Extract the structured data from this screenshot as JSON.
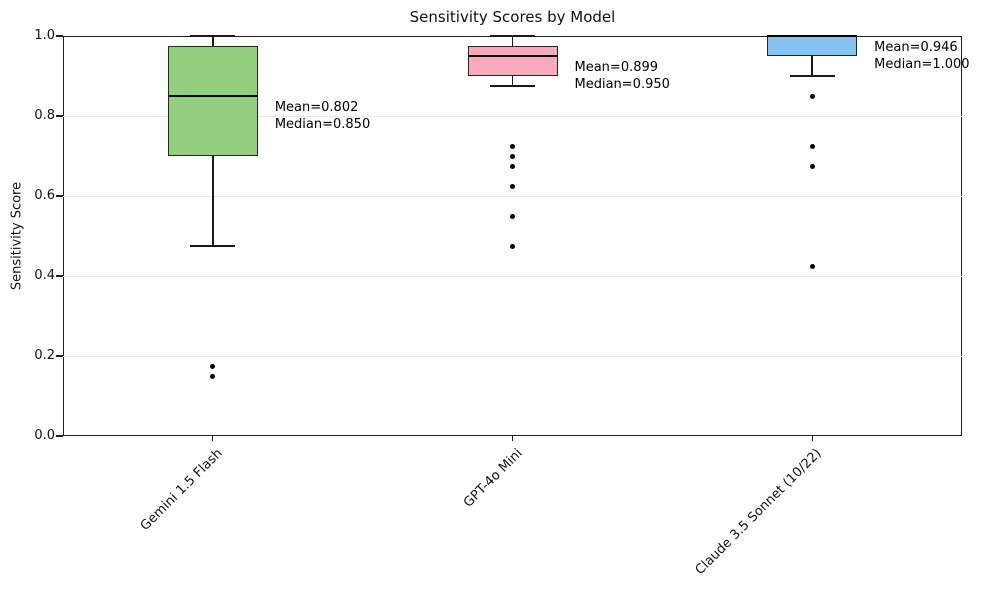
{
  "chart_data": {
    "type": "box",
    "title": "Sensitivity Scores by Model",
    "xlabel": "",
    "ylabel": "Sensitivity Score",
    "ylim": [
      0.0,
      1.0
    ],
    "yticks": [
      0.0,
      0.2,
      0.4,
      0.6,
      0.8,
      1.0
    ],
    "ytick_labels": [
      "0.0",
      "0.2",
      "0.4",
      "0.6",
      "0.8",
      "1.0"
    ],
    "grid": "horizontal",
    "legend": "none",
    "categories": [
      "Gemini 1.5 Flash",
      "GPT-4o Mini",
      "Claude 3.5 Sonnet (10/22)"
    ],
    "boxes": [
      {
        "label": "Gemini 1.5 Flash",
        "fill_color": "#94CE80",
        "q1": 0.7,
        "median": 0.85,
        "q3": 0.975,
        "whisker_low": 0.475,
        "whisker_high": 1.0,
        "outliers": [
          0.175,
          0.15
        ],
        "mean": 0.802,
        "annotation_lines": [
          "Mean=0.802",
          "Median=0.850"
        ]
      },
      {
        "label": "GPT-4o Mini",
        "fill_color": "#F8A9BB",
        "q1": 0.9,
        "median": 0.95,
        "q3": 0.975,
        "whisker_low": 0.875,
        "whisker_high": 1.0,
        "outliers": [
          0.725,
          0.7,
          0.675,
          0.625,
          0.55,
          0.475
        ],
        "mean": 0.899,
        "annotation_lines": [
          "Mean=0.899",
          "Median=0.950"
        ]
      },
      {
        "label": "Claude 3.5 Sonnet (10/22)",
        "fill_color": "#86C2F0",
        "q1": 0.95,
        "median": 1.0,
        "q3": 1.0,
        "whisker_low": 0.9,
        "whisker_high": 1.0,
        "outliers": [
          0.85,
          0.725,
          0.675,
          0.425
        ],
        "mean": 0.946,
        "annotation_lines": [
          "Mean=0.946",
          "Median=1.000"
        ]
      }
    ],
    "colors": {
      "box_edge": "#262626",
      "median_line": "#000000",
      "whisker": "#1a1a1a",
      "outlier": "#000000",
      "grid": "#e9e9e9",
      "spine": "#1f1f1f"
    }
  }
}
